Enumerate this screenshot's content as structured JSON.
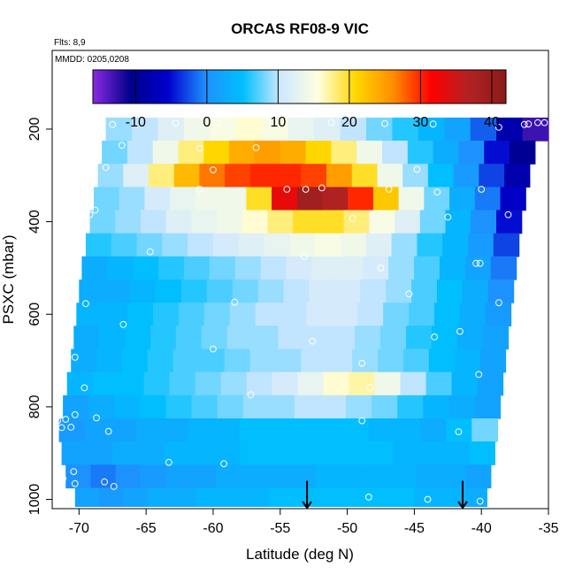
{
  "chart_data": {
    "type": "heatmap",
    "title": "ORCAS RF08-9 VIC",
    "flights_note": "Flts: 8,9",
    "mmdd_note": "MMDD: 0205,0208",
    "xlabel": "Latitude (deg N)",
    "ylabel": "PSXC (mbar)",
    "xlim": [
      -72,
      -35
    ],
    "ylim": [
      1020,
      30
    ],
    "y_reversed": true,
    "x_ticks": [
      "-70",
      "-65",
      "-60",
      "-55",
      "-50",
      "-45",
      "-40",
      "-35"
    ],
    "x_tick_values": [
      -70,
      -65,
      -60,
      -55,
      -50,
      -45,
      -40,
      -35
    ],
    "y_ticks": [
      "200",
      "400",
      "600",
      "800",
      "1000"
    ],
    "y_tick_values": [
      200,
      400,
      600,
      800,
      1000
    ],
    "colorbar": {
      "range": [
        -16,
        42
      ],
      "tick_labels": [
        "-10",
        "0",
        "10",
        "20",
        "30",
        "40"
      ],
      "tick_values": [
        -10,
        0,
        10,
        20,
        30,
        40
      ],
      "colors": [
        "#8a2be2",
        "#00008b",
        "#0000cd",
        "#1e90ff",
        "#00bfff",
        "#cfe8ff",
        "#ffffe0",
        "#ffd700",
        "#ff8c00",
        "#ff0000",
        "#b22222",
        "#8b1a1a"
      ]
    },
    "pressure_levels": [
      200,
      250,
      300,
      350,
      400,
      450,
      500,
      550,
      600,
      650,
      700,
      750,
      800,
      850,
      900,
      950,
      1000
    ],
    "rows": [
      {
        "p": 200,
        "lat_start": -68.0,
        "lat_end": -35.0,
        "values": [
          9,
          10,
          12,
          14,
          15,
          16,
          15,
          13,
          12,
          10,
          8,
          6,
          4,
          2,
          -2,
          -8,
          -13
        ]
      },
      {
        "p": 250,
        "lat_start": -68.3,
        "lat_end": -36.0,
        "values": [
          8,
          10,
          14,
          18,
          21,
          24,
          25,
          24,
          21,
          18,
          14,
          10,
          6,
          3,
          0,
          -5,
          -10
        ]
      },
      {
        "p": 300,
        "lat_start": -68.6,
        "lat_end": -36.4,
        "values": [
          9,
          12,
          18,
          23,
          27,
          29,
          30,
          30,
          29,
          25,
          20,
          14,
          9,
          5,
          1,
          -3,
          -8
        ]
      },
      {
        "p": 350,
        "lat_start": -68.9,
        "lat_end": -36.7,
        "values": [
          8,
          9,
          11,
          13,
          14,
          14,
          20,
          33,
          39,
          37,
          30,
          22,
          14,
          8,
          3,
          -1,
          -6
        ]
      },
      {
        "p": 400,
        "lat_start": -69.2,
        "lat_end": -37.0,
        "values": [
          8,
          9,
          10,
          12,
          13,
          14,
          16,
          18,
          20,
          20,
          18,
          15,
          12,
          8,
          4,
          0,
          -5
        ]
      },
      {
        "p": 450,
        "lat_start": -69.5,
        "lat_end": -37.2,
        "values": [
          6,
          7,
          8,
          9,
          10,
          11,
          12,
          13,
          14,
          15,
          14,
          12,
          9,
          6,
          4,
          1,
          -3
        ]
      },
      {
        "p": 500,
        "lat_start": -69.8,
        "lat_end": -37.4,
        "values": [
          3,
          4,
          5,
          6,
          7,
          8,
          9,
          10,
          11,
          12,
          12,
          11,
          9,
          7,
          4,
          2,
          -1
        ]
      },
      {
        "p": 550,
        "lat_start": -70.0,
        "lat_end": -37.6,
        "values": [
          3,
          3,
          4,
          5,
          6,
          7,
          8,
          9,
          10,
          11,
          11,
          10,
          9,
          7,
          5,
          3,
          0
        ]
      },
      {
        "p": 600,
        "lat_start": -70.2,
        "lat_end": -37.8,
        "values": [
          4,
          4,
          5,
          6,
          7,
          8,
          9,
          10,
          10,
          11,
          11,
          10,
          8,
          7,
          5,
          3,
          1
        ]
      },
      {
        "p": 650,
        "lat_start": -70.4,
        "lat_end": -38.0,
        "values": [
          3,
          4,
          5,
          6,
          7,
          8,
          9,
          9,
          10,
          10,
          10,
          9,
          8,
          6,
          5,
          3,
          2
        ]
      },
      {
        "p": 700,
        "lat_start": -70.6,
        "lat_end": -38.2,
        "values": [
          3,
          4,
          5,
          6,
          7,
          7,
          8,
          9,
          9,
          10,
          10,
          9,
          8,
          7,
          5,
          4,
          2
        ]
      },
      {
        "p": 750,
        "lat_start": -70.9,
        "lat_end": -38.4,
        "values": [
          4,
          5,
          5,
          6,
          7,
          8,
          9,
          10,
          11,
          13,
          16,
          17,
          14,
          10,
          7,
          4,
          2
        ]
      },
      {
        "p": 800,
        "lat_start": -71.2,
        "lat_end": -38.6,
        "values": [
          2,
          3,
          4,
          5,
          6,
          7,
          8,
          9,
          9,
          10,
          10,
          9,
          8,
          6,
          4,
          3,
          2
        ]
      },
      {
        "p": 850,
        "lat_start": -71.5,
        "lat_end": -38.8,
        "values": [
          1,
          2,
          2,
          3,
          3,
          4,
          4,
          5,
          5,
          5,
          5,
          5,
          4,
          4,
          3,
          5,
          8
        ]
      },
      {
        "p": 900,
        "lat_start": -71.3,
        "lat_end": -39.0,
        "values": [
          2,
          2,
          3,
          3,
          4,
          4,
          4,
          5,
          5,
          5,
          5,
          5,
          5,
          4,
          4,
          4,
          5
        ]
      },
      {
        "p": 950,
        "lat_start": -71.0,
        "lat_end": -39.3,
        "values": [
          0,
          -1,
          0,
          1,
          2,
          2,
          3,
          3,
          3,
          3,
          4,
          4,
          4,
          4,
          3,
          3,
          2
        ]
      },
      {
        "p": 1000,
        "lat_start": -70.3,
        "lat_end": -39.6,
        "values": [
          2,
          1,
          2,
          3,
          3,
          4,
          4,
          4,
          5,
          5,
          5,
          5,
          5,
          5,
          4,
          4,
          3
        ]
      }
    ],
    "points": [
      [
        -67.5,
        190
      ],
      [
        -62.8,
        187
      ],
      [
        -59.7,
        187
      ],
      [
        -55.6,
        186
      ],
      [
        -51.2,
        186
      ],
      [
        -47.2,
        188
      ],
      [
        -43.6,
        189
      ],
      [
        -38.7,
        196
      ],
      [
        -36.8,
        190
      ],
      [
        -36.5,
        189
      ],
      [
        -35.8,
        186
      ],
      [
        -35.3,
        186
      ],
      [
        -66.8,
        235
      ],
      [
        -61.0,
        242
      ],
      [
        -56.8,
        240
      ],
      [
        -68.0,
        283
      ],
      [
        -60.0,
        288
      ],
      [
        -44.8,
        287
      ],
      [
        -61.0,
        330
      ],
      [
        -54.5,
        330
      ],
      [
        -53.1,
        330
      ],
      [
        -51.9,
        327
      ],
      [
        -46.9,
        330
      ],
      [
        -43.3,
        336
      ],
      [
        -40.0,
        330
      ],
      [
        -68.8,
        375
      ],
      [
        -69.2,
        385
      ],
      [
        -49.6,
        393
      ],
      [
        -42.5,
        390
      ],
      [
        -38.0,
        385
      ],
      [
        -64.7,
        465
      ],
      [
        -53.2,
        475
      ],
      [
        -47.5,
        500
      ],
      [
        -40.4,
        490
      ],
      [
        -40.1,
        490
      ],
      [
        -45.4,
        556
      ],
      [
        -69.5,
        577
      ],
      [
        -58.4,
        574
      ],
      [
        -38.7,
        575
      ],
      [
        -66.7,
        622
      ],
      [
        -52.6,
        658
      ],
      [
        -43.5,
        649
      ],
      [
        -41.6,
        637
      ],
      [
        -60.0,
        675
      ],
      [
        -70.3,
        693
      ],
      [
        -48.9,
        706
      ],
      [
        -40.2,
        730
      ],
      [
        -69.6,
        759
      ],
      [
        -48.3,
        758
      ],
      [
        -57.2,
        774
      ],
      [
        -71.0,
        827
      ],
      [
        -70.3,
        817
      ],
      [
        -68.7,
        824
      ],
      [
        -71.6,
        830
      ],
      [
        -71.3,
        845
      ],
      [
        -48.9,
        830
      ],
      [
        -70.6,
        844
      ],
      [
        -67.8,
        853
      ],
      [
        -41.7,
        854
      ],
      [
        -63.3,
        920
      ],
      [
        -59.2,
        923
      ],
      [
        -70.4,
        940
      ],
      [
        -71.2,
        955
      ],
      [
        -68.1,
        962
      ],
      [
        -67.4,
        972
      ],
      [
        -70.3,
        966
      ],
      [
        -48.4,
        995
      ],
      [
        -44.0,
        1000
      ],
      [
        -40.1,
        1004
      ]
    ],
    "arrows_lat": [
      -53.0,
      -41.4
    ]
  }
}
